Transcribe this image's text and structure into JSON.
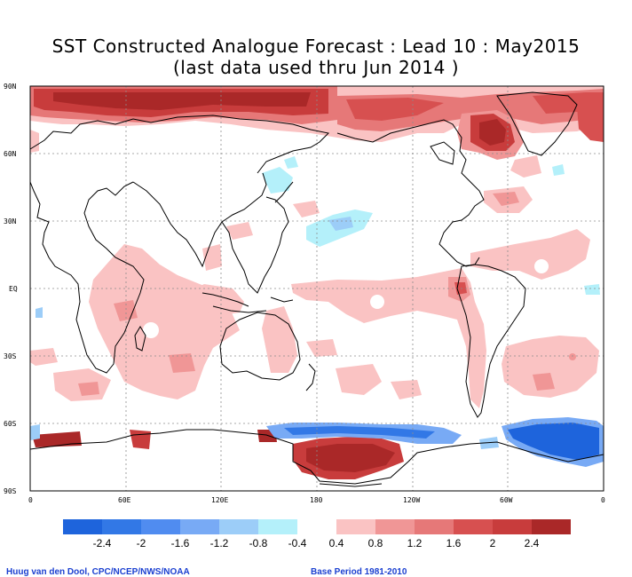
{
  "title_line1": "SST Constructed Analogue Forecast : Lead 10 : May2015",
  "title_line2": "(last data used thru Jun 2014 )",
  "lat_labels": [
    "90N",
    "60N",
    "30N",
    "EQ",
    "30S",
    "60S",
    "90S"
  ],
  "lat_values": [
    90,
    60,
    30,
    0,
    -30,
    -60,
    -90
  ],
  "lon_labels": [
    "0",
    "60E",
    "120E",
    "180",
    "120W",
    "60W",
    "0"
  ],
  "lon_values": [
    0,
    60,
    120,
    180,
    240,
    300,
    360
  ],
  "colorbar": {
    "labels": [
      "-2.4",
      "-2",
      "-1.6",
      "-1.2",
      "-0.8",
      "-0.4",
      "0.4",
      "0.8",
      "1.2",
      "1.6",
      "2",
      "2.4"
    ],
    "colors": [
      "#1e64dc",
      "#3278e6",
      "#508cf0",
      "#78aaf5",
      "#9ccdf8",
      "#b4f0fa",
      "#ffffff",
      "#fac3c3",
      "#f09696",
      "#e67878",
      "#d75050",
      "#c83c3c",
      "#aa2828"
    ]
  },
  "colors": {
    "land_outline": "#000000",
    "grid": "#8c8c8c",
    "footer_text": "#1a3fd0"
  },
  "footer": {
    "credit": "Huug van den Dool, CPC/NCEP/NWS/NOAA",
    "base_period": "Base Period 1981-2010"
  }
}
